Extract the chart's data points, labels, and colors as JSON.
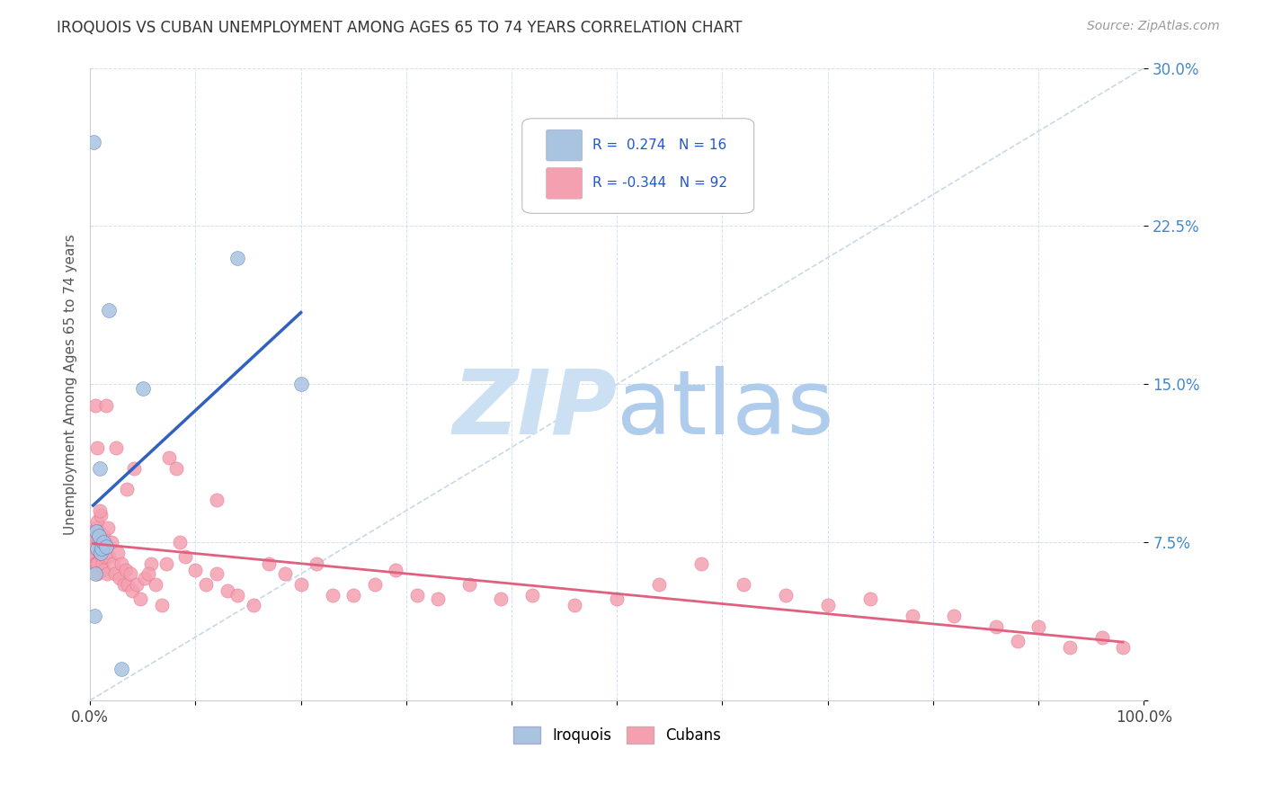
{
  "title": "IROQUOIS VS CUBAN UNEMPLOYMENT AMONG AGES 65 TO 74 YEARS CORRELATION CHART",
  "source": "Source: ZipAtlas.com",
  "ylabel": "Unemployment Among Ages 65 to 74 years",
  "xlim": [
    0,
    1.0
  ],
  "ylim": [
    0,
    0.3
  ],
  "xticks": [
    0.0,
    0.1,
    0.2,
    0.3,
    0.4,
    0.5,
    0.6,
    0.7,
    0.8,
    0.9,
    1.0
  ],
  "xticklabels_show": {
    "0.0": "0.0%",
    "1.0": "100.0%"
  },
  "yticks": [
    0.0,
    0.075,
    0.15,
    0.225,
    0.3
  ],
  "yticklabels": [
    "",
    "7.5%",
    "15.0%",
    "22.5%",
    "30.0%"
  ],
  "legend_r_iroquois": "0.274",
  "legend_n_iroquois": "16",
  "legend_r_cubans": "-0.344",
  "legend_n_cubans": "92",
  "iroquois_color": "#a8c4e0",
  "cubans_color": "#f4a0b0",
  "iroquois_line_color": "#3060c0",
  "cubans_line_color": "#e06080",
  "ref_line_color": "#c8d8e8",
  "watermark_zip_color": "#cce0f0",
  "watermark_atlas_color": "#b8d0e8",
  "background_color": "#ffffff",
  "iroquois_x": [
    0.003,
    0.004,
    0.005,
    0.006,
    0.007,
    0.008,
    0.009,
    0.01,
    0.011,
    0.013,
    0.015,
    0.018,
    0.03,
    0.05,
    0.14,
    0.2
  ],
  "iroquois_y": [
    0.265,
    0.04,
    0.06,
    0.08,
    0.072,
    0.078,
    0.11,
    0.07,
    0.072,
    0.075,
    0.073,
    0.185,
    0.015,
    0.148,
    0.21,
    0.15
  ],
  "cubans_x": [
    0.003,
    0.003,
    0.004,
    0.004,
    0.005,
    0.005,
    0.005,
    0.006,
    0.006,
    0.007,
    0.007,
    0.007,
    0.008,
    0.008,
    0.009,
    0.01,
    0.01,
    0.011,
    0.012,
    0.013,
    0.013,
    0.014,
    0.015,
    0.016,
    0.017,
    0.018,
    0.02,
    0.022,
    0.024,
    0.026,
    0.028,
    0.03,
    0.032,
    0.034,
    0.036,
    0.038,
    0.04,
    0.042,
    0.044,
    0.048,
    0.052,
    0.058,
    0.062,
    0.068,
    0.075,
    0.082,
    0.09,
    0.1,
    0.11,
    0.12,
    0.13,
    0.14,
    0.155,
    0.17,
    0.185,
    0.2,
    0.215,
    0.23,
    0.25,
    0.27,
    0.29,
    0.31,
    0.33,
    0.36,
    0.39,
    0.42,
    0.46,
    0.5,
    0.54,
    0.58,
    0.62,
    0.66,
    0.7,
    0.74,
    0.78,
    0.82,
    0.86,
    0.88,
    0.9,
    0.93,
    0.96,
    0.98,
    0.005,
    0.007,
    0.009,
    0.015,
    0.025,
    0.035,
    0.055,
    0.072,
    0.085,
    0.12
  ],
  "cubans_y": [
    0.075,
    0.068,
    0.072,
    0.08,
    0.068,
    0.078,
    0.065,
    0.082,
    0.065,
    0.06,
    0.085,
    0.065,
    0.075,
    0.08,
    0.07,
    0.088,
    0.072,
    0.072,
    0.065,
    0.062,
    0.078,
    0.068,
    0.074,
    0.06,
    0.082,
    0.068,
    0.075,
    0.065,
    0.06,
    0.07,
    0.058,
    0.065,
    0.055,
    0.062,
    0.055,
    0.06,
    0.052,
    0.11,
    0.055,
    0.048,
    0.058,
    0.065,
    0.055,
    0.045,
    0.115,
    0.11,
    0.068,
    0.062,
    0.055,
    0.06,
    0.052,
    0.05,
    0.045,
    0.065,
    0.06,
    0.055,
    0.065,
    0.05,
    0.05,
    0.055,
    0.062,
    0.05,
    0.048,
    0.055,
    0.048,
    0.05,
    0.045,
    0.048,
    0.055,
    0.065,
    0.055,
    0.05,
    0.045,
    0.048,
    0.04,
    0.04,
    0.035,
    0.028,
    0.035,
    0.025,
    0.03,
    0.025,
    0.14,
    0.12,
    0.09,
    0.14,
    0.12,
    0.1,
    0.06,
    0.065,
    0.075,
    0.095
  ]
}
